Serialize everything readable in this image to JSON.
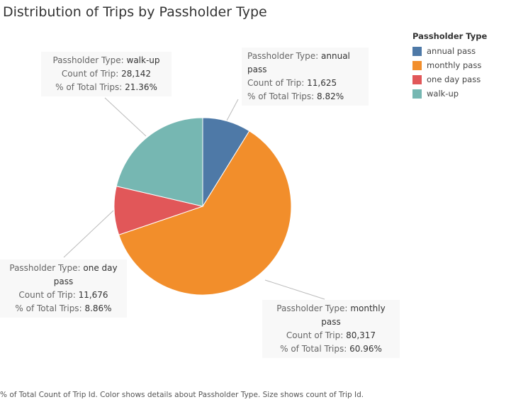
{
  "title": "Distribution of Trips by Passholder Type",
  "footer": "% of Total Count of Trip Id.  Color shows details about Passholder Type.  Size shows count of Trip Id.",
  "legend": {
    "title": "Passholder Type",
    "items": [
      {
        "label": "annual pass",
        "color": "#4e79a7"
      },
      {
        "label": "monthly pass",
        "color": "#f28e2b"
      },
      {
        "label": "one day pass",
        "color": "#e15759"
      },
      {
        "label": "walk-up",
        "color": "#76b7b2"
      }
    ]
  },
  "chart_data": {
    "type": "pie",
    "title": "Distribution of Trips by Passholder Type",
    "slices": [
      {
        "category": "annual pass",
        "count": 11625,
        "percent": 8.82,
        "color": "#4e79a7"
      },
      {
        "category": "monthly pass",
        "count": 80317,
        "percent": 60.96,
        "color": "#f28e2b"
      },
      {
        "category": "one day pass",
        "count": 11676,
        "percent": 8.86,
        "color": "#e15759"
      },
      {
        "category": "walk-up",
        "count": 28142,
        "percent": 21.36,
        "color": "#76b7b2"
      }
    ],
    "legend_position": "top-right"
  },
  "tooltips": {
    "type_label": "Passholder Type:",
    "count_label": "Count of Trip:",
    "pct_label": "% of Total Trips:",
    "walkup": {
      "type": "walk-up",
      "count": "28,142",
      "pct": "21.36%"
    },
    "annual": {
      "type_l1": "annual",
      "type_l2": "pass",
      "count": "11,625",
      "pct": "8.82%"
    },
    "oneday": {
      "type_l1": "one day",
      "type_l2": "pass",
      "count": "11,676",
      "pct": "8.86%"
    },
    "monthly": {
      "type_l1": "monthly",
      "type_l2": "pass",
      "count": "80,317",
      "pct": "60.96%"
    }
  }
}
